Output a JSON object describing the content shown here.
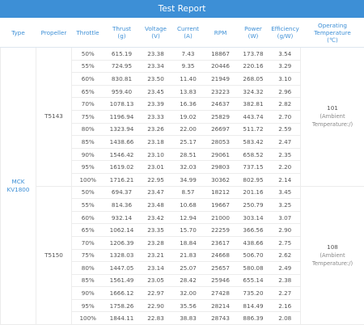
{
  "header": {
    "title": "Test Report"
  },
  "table": {
    "columns": [
      [
        "Type"
      ],
      [
        "Propeller"
      ],
      [
        "Throttle"
      ],
      [
        "Thrust",
        "(g)"
      ],
      [
        "Voltage",
        "(V)"
      ],
      [
        "Current",
        "(A)"
      ],
      [
        "RPM"
      ],
      [
        "Power",
        "(W)"
      ],
      [
        "Efficiency",
        "(g/W)"
      ],
      [
        "Operating",
        "Temperature",
        "(℃)"
      ]
    ],
    "type": "MCK KV1800",
    "groups": [
      {
        "propeller": "T5143",
        "temperature": "101",
        "temperature_note": "(Ambient Temperature:/)",
        "rows": [
          [
            "50%",
            "615.19",
            "23.38",
            "7.43",
            "18867",
            "173.78",
            "3.54"
          ],
          [
            "55%",
            "724.95",
            "23.34",
            "9.35",
            "20446",
            "220.16",
            "3.29"
          ],
          [
            "60%",
            "830.81",
            "23.50",
            "11.40",
            "21949",
            "268.05",
            "3.10"
          ],
          [
            "65%",
            "959.40",
            "23.45",
            "13.83",
            "23223",
            "324.32",
            "2.96"
          ],
          [
            "70%",
            "1078.13",
            "23.39",
            "16.36",
            "24637",
            "382.81",
            "2.82"
          ],
          [
            "75%",
            "1196.94",
            "23.33",
            "19.02",
            "25829",
            "443.74",
            "2.70"
          ],
          [
            "80%",
            "1323.94",
            "23.26",
            "22.00",
            "26697",
            "511.72",
            "2.59"
          ],
          [
            "85%",
            "1438.66",
            "23.18",
            "25.17",
            "28053",
            "583.42",
            "2.47"
          ],
          [
            "90%",
            "1546.42",
            "23.10",
            "28.51",
            "29061",
            "658.52",
            "2.35"
          ],
          [
            "95%",
            "1619.02",
            "23.01",
            "32.03",
            "29803",
            "737.15",
            "2.20"
          ],
          [
            "100%",
            "1716.21",
            "22.95",
            "34.99",
            "30362",
            "802.95",
            "2.14"
          ]
        ]
      },
      {
        "propeller": "T5150",
        "temperature": "108",
        "temperature_note": "(Ambient Temperature:/)",
        "rows": [
          [
            "50%",
            "694.37",
            "23.47",
            "8.57",
            "18212",
            "201.16",
            "3.45"
          ],
          [
            "55%",
            "814.36",
            "23.48",
            "10.68",
            "19667",
            "250.79",
            "3.25"
          ],
          [
            "60%",
            "932.14",
            "23.42",
            "12.94",
            "21000",
            "303.14",
            "3.07"
          ],
          [
            "65%",
            "1062.14",
            "23.35",
            "15.70",
            "22259",
            "366.56",
            "2.90"
          ],
          [
            "70%",
            "1206.39",
            "23.28",
            "18.84",
            "23617",
            "438.66",
            "2.75"
          ],
          [
            "75%",
            "1328.03",
            "23.21",
            "21.83",
            "24668",
            "506.70",
            "2.62"
          ],
          [
            "80%",
            "1447.05",
            "23.14",
            "25.07",
            "25657",
            "580.08",
            "2.49"
          ],
          [
            "85%",
            "1561.49",
            "23.05",
            "28.42",
            "25946",
            "655.14",
            "2.38"
          ],
          [
            "90%",
            "1666.12",
            "22.97",
            "32.00",
            "27428",
            "735.20",
            "2.27"
          ],
          [
            "95%",
            "1758.26",
            "22.90",
            "35.56",
            "28214",
            "814.49",
            "2.16"
          ],
          [
            "100%",
            "1844.11",
            "22.83",
            "38.83",
            "28743",
            "886.39",
            "2.08"
          ]
        ]
      }
    ]
  }
}
